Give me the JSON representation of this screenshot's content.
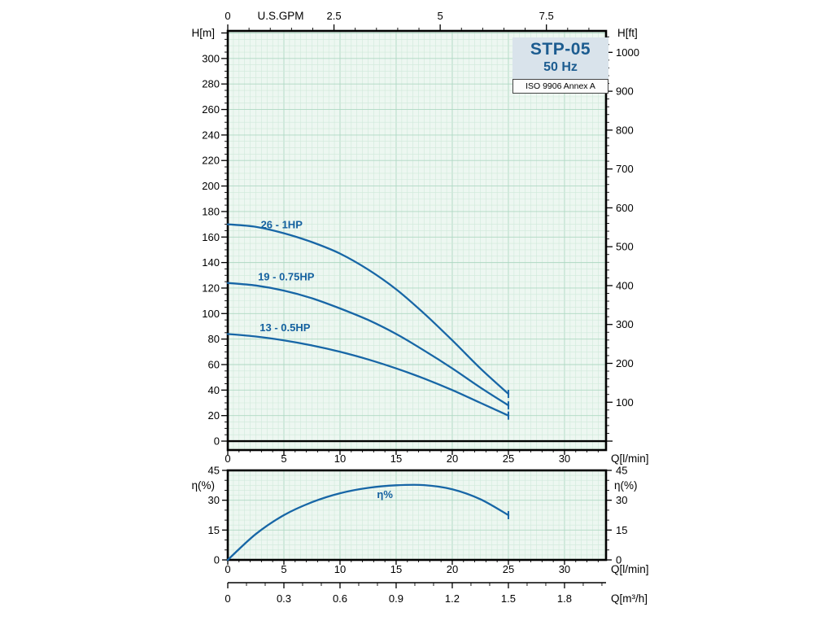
{
  "header": {
    "model": "STP-05",
    "frequency": "50 Hz",
    "standard": "ISO 9906 Annex A"
  },
  "colors": {
    "curve": "#1766a6",
    "series_label": "#1561a0",
    "title_text": "#1c5c90",
    "title_bg": "#d9e3eb",
    "plot_bg": "#edf7f1",
    "grid_minor": "#cfe9da",
    "grid_major": "#aed8c3",
    "axis": "#000000"
  },
  "chart_data": [
    {
      "type": "line",
      "name": "head-flow-chart",
      "title": "STP-05 50 Hz",
      "x_bottom": {
        "label": "Q[l/min]",
        "ticks": [
          0,
          5,
          10,
          15,
          20,
          25,
          30
        ],
        "minor_step": 1,
        "min": 0,
        "max": 33.7
      },
      "x_top": {
        "label": "U.S.GPM",
        "ticks": [
          0,
          2.5,
          5,
          7.5
        ],
        "minor_step": 0.5,
        "lmin_per_gpm": 3.785
      },
      "y_left": {
        "label": "H[m]",
        "ticks": [
          0,
          20,
          40,
          60,
          80,
          100,
          120,
          140,
          160,
          180,
          200,
          220,
          240,
          260,
          280,
          300
        ],
        "minor_step": 5,
        "min": -7,
        "max": 321.6
      },
      "y_right": {
        "label": "H[ft]",
        "ticks": [
          100,
          200,
          300,
          400,
          500,
          600,
          700,
          800,
          900,
          1000
        ],
        "minor_step": 20,
        "m_per_ft": 0.3048
      },
      "grid": true,
      "series": [
        {
          "name": "26 - 1HP",
          "label_at": [
            4.8,
            167
          ],
          "x": [
            0,
            2.5,
            5,
            7.5,
            10,
            12.5,
            15,
            17.5,
            20,
            22.5,
            25
          ],
          "y": [
            170,
            168,
            163,
            156,
            147,
            134.5,
            119,
            100,
            79,
            57,
            37
          ]
        },
        {
          "name": "19 - 0.75HP",
          "label_at": [
            5.2,
            126
          ],
          "x": [
            0,
            2.5,
            5,
            7.5,
            10,
            12.5,
            15,
            17.5,
            20,
            22.5,
            25
          ],
          "y": [
            124,
            122,
            118,
            112,
            104,
            95,
            84,
            71,
            57,
            42,
            28
          ]
        },
        {
          "name": "13 - 0.5HP",
          "label_at": [
            5.1,
            86
          ],
          "x": [
            0,
            2.5,
            5,
            7.5,
            10,
            12.5,
            15,
            17.5,
            20,
            22.5,
            25
          ],
          "y": [
            84,
            82,
            79,
            75,
            70,
            64,
            57,
            49,
            40,
            30,
            20
          ]
        }
      ]
    },
    {
      "type": "line",
      "name": "efficiency-chart",
      "x_bottom": {
        "label": "Q[l/min]",
        "ticks": [
          0,
          5,
          10,
          15,
          20,
          25,
          30
        ],
        "minor_step": 1,
        "min": 0,
        "max": 33.7
      },
      "x_bottom2": {
        "label": "Q[m³/h]",
        "ticks": [
          "0",
          "0.3",
          "0.6",
          "0.9",
          "1.2",
          "1.5",
          "1.8"
        ],
        "minor_step": 0.1,
        "lmin_per_m3h": 16.6667
      },
      "y_left": {
        "label": "η(%)",
        "ticks": [
          0,
          15,
          30,
          45
        ],
        "minor_step": 5,
        "min": 0,
        "max": 45
      },
      "y_right": {
        "label": "η(%)",
        "ticks": [
          0,
          15,
          30,
          45
        ]
      },
      "grid": true,
      "series": [
        {
          "name": "η%",
          "label_at": [
            14,
            31
          ],
          "x": [
            0,
            2.5,
            5,
            7.5,
            10,
            12.5,
            15,
            17.5,
            20,
            22.5,
            25
          ],
          "y": [
            0,
            13,
            22.5,
            29,
            33.5,
            36.2,
            37.5,
            37.6,
            35.5,
            30.5,
            22.5
          ]
        }
      ]
    }
  ]
}
